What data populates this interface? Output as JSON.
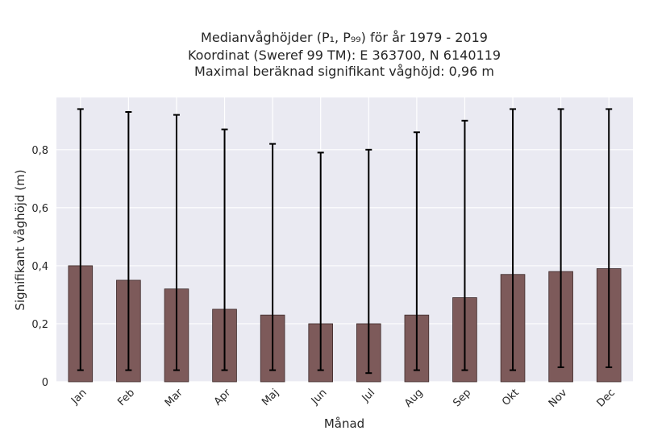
{
  "chart_data": {
    "type": "bar",
    "title_lines": [
      "Medianvåghöjder (P₁, P₉₉) för år 1979 - 2019",
      "Koordinat (Sweref 99 TM): E 363700, N 6140119",
      "Maximal beräknad signifikant våghöjd: 0,96 m"
    ],
    "xlabel": "Månad",
    "ylabel": "Signifikant våghöjd (m)",
    "categories": [
      "Jan",
      "Feb",
      "Mar",
      "Apr",
      "Maj",
      "Jun",
      "Jul",
      "Aug",
      "Sep",
      "Okt",
      "Nov",
      "Dec"
    ],
    "values": [
      0.4,
      0.35,
      0.32,
      0.25,
      0.23,
      0.2,
      0.2,
      0.23,
      0.29,
      0.37,
      0.38,
      0.39
    ],
    "error_low": [
      0.04,
      0.04,
      0.04,
      0.04,
      0.04,
      0.04,
      0.03,
      0.04,
      0.04,
      0.04,
      0.05,
      0.05
    ],
    "error_high": [
      0.94,
      0.93,
      0.92,
      0.87,
      0.82,
      0.79,
      0.8,
      0.86,
      0.9,
      0.94,
      0.94,
      0.94
    ],
    "yticks": [
      0,
      0.2,
      0.4,
      0.6,
      0.8
    ],
    "ytick_labels": [
      "0",
      "0,2",
      "0,4",
      "0,6",
      "0,8"
    ],
    "ylim": [
      0,
      0.98
    ],
    "grid": true,
    "colors": {
      "bar": "#7d5a5a",
      "bar_edge": "#3d2a2a",
      "error": "#000000",
      "plot_bg": "#eaeaf2",
      "grid": "#ffffff"
    }
  }
}
